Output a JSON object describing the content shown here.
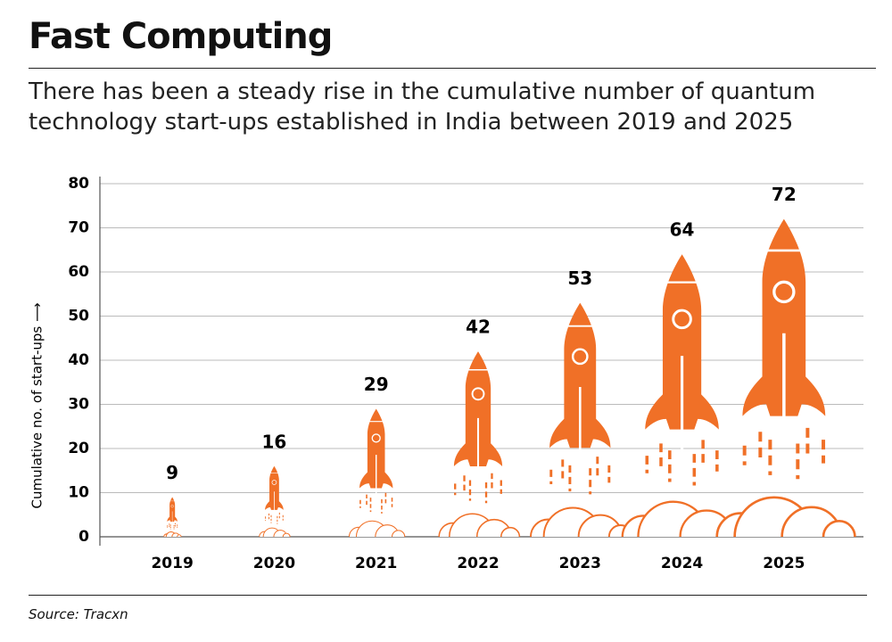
{
  "chart_data": {
    "type": "rocket",
    "title": "Fast Computing",
    "subtitle": "There has been a steady rise in the cumulative number of quantum technology start-ups established in India between 2019 and 2025",
    "y_label": "Cumulative no. of start-ups ⟶",
    "source": "Source: Tracxn",
    "categories": [
      "2019",
      "2020",
      "2021",
      "2022",
      "2023",
      "2024",
      "2025"
    ],
    "values": [
      9,
      16,
      29,
      42,
      53,
      64,
      72
    ],
    "color": "#f07027",
    "ylim": [
      0,
      80
    ],
    "yticks": [
      0,
      10,
      20,
      30,
      40,
      50,
      60,
      70,
      80
    ],
    "grid": true
  }
}
